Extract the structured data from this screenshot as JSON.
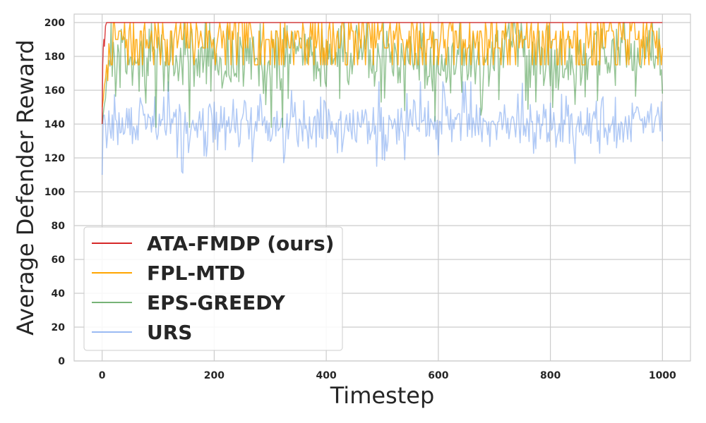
{
  "chart_data": {
    "type": "line",
    "title": "",
    "xlabel": "Timestep",
    "ylabel": "Average Defender Reward",
    "xlim": [
      -50,
      1050
    ],
    "ylim": [
      0,
      205
    ],
    "xticks": [
      0,
      200,
      400,
      600,
      800,
      1000
    ],
    "yticks": [
      0,
      20,
      40,
      60,
      80,
      100,
      120,
      140,
      160,
      180,
      200
    ],
    "grid": true,
    "legend_position": "lower-left",
    "series": [
      {
        "name": "ATA-FMDP (ours)",
        "color": "#d62728",
        "opacity": 0.85,
        "x": [
          0,
          1,
          2,
          3,
          4,
          5,
          6,
          8,
          10,
          1000
        ],
        "y": [
          140,
          175,
          185,
          190,
          186,
          192,
          198,
          200,
          200,
          200
        ]
      },
      {
        "name": "FPL-MTD",
        "color": "#ffa500",
        "opacity": 0.85,
        "generated": {
          "start": 0,
          "end": 1000,
          "step": 2,
          "first": 150,
          "values": [
            175,
            185,
            190,
            195,
            200
          ],
          "seed": 7,
          "warmup": 8
        }
      },
      {
        "name": "EPS-GREEDY",
        "color": "#2e8b2e",
        "opacity": 0.5,
        "generated": {
          "start": 0,
          "end": 1000,
          "step": 2,
          "first": 140,
          "mean": 178,
          "spread": 20,
          "min": 138,
          "max": 200,
          "seed": 13,
          "warmup": 6
        }
      },
      {
        "name": "URS",
        "color": "#6495ed",
        "opacity": 0.5,
        "generated": {
          "start": 0,
          "end": 1000,
          "step": 2,
          "first": 110,
          "mean": 140,
          "spread": 14,
          "min": 95,
          "max": 165,
          "seed": 29,
          "warmup": 0
        }
      }
    ]
  }
}
